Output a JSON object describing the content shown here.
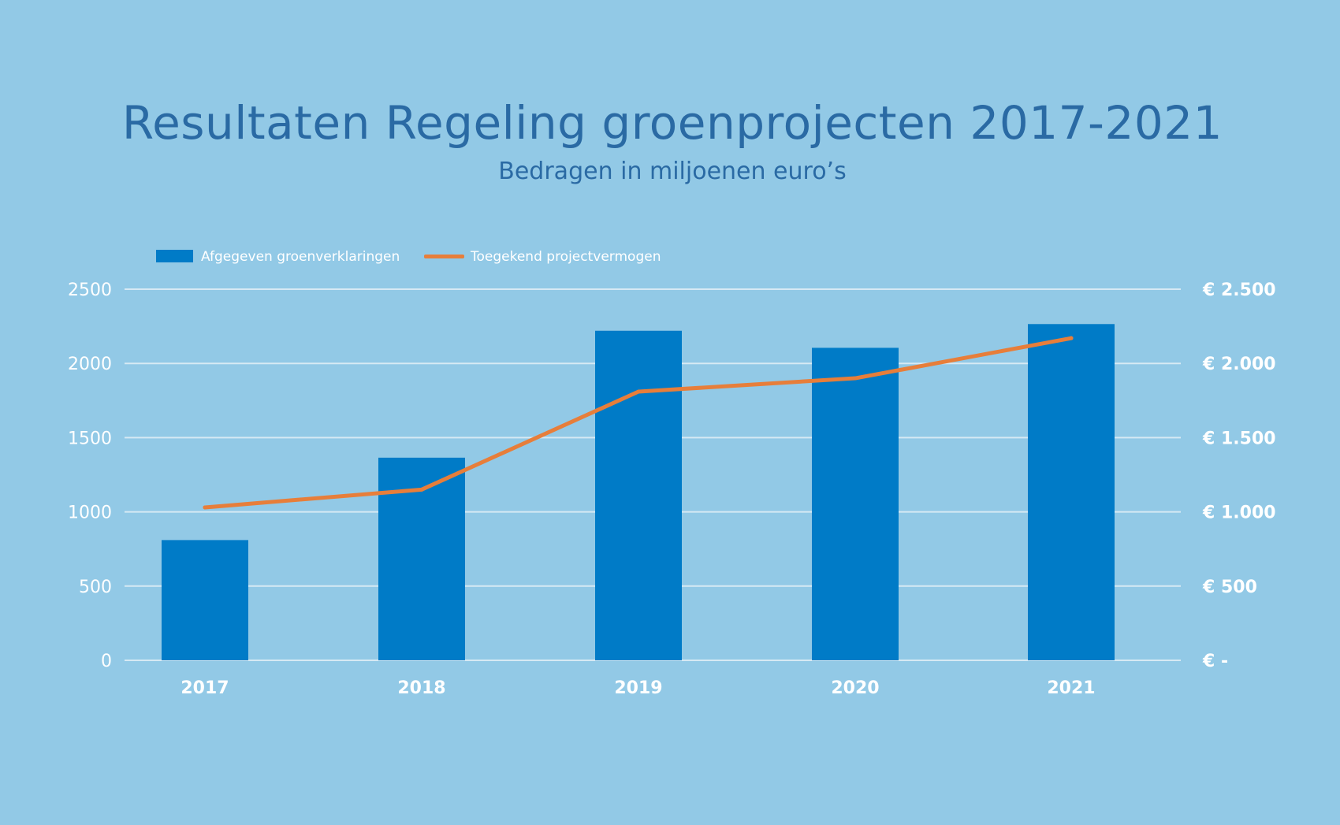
{
  "chart_data": {
    "type": "bar",
    "title": "Resultaten Regeling groenprojecten 2017-2021",
    "subtitle": "Bedragen in miljoenen euro’s",
    "categories": [
      "2017",
      "2018",
      "2019",
      "2020",
      "2021"
    ],
    "series": [
      {
        "name": "Afgegeven groenverklaringen",
        "type": "bar",
        "axis": "left",
        "values": [
          810,
          1365,
          2220,
          2105,
          2265
        ]
      },
      {
        "name": "Toegekend projectvermogen",
        "type": "line",
        "axis": "right",
        "values": [
          1030,
          1150,
          1810,
          1900,
          2170
        ]
      }
    ],
    "y_left": {
      "range": [
        0,
        2500
      ],
      "ticks": [
        0,
        500,
        1000,
        1500,
        2000,
        2500
      ],
      "tick_labels": [
        "0",
        "500",
        "1000",
        "1500",
        "2000",
        "2500"
      ]
    },
    "y_right": {
      "range": [
        0,
        2500
      ],
      "ticks": [
        0,
        500,
        1000,
        1500,
        2000,
        2500
      ],
      "tick_labels": [
        "€ -",
        "€ 500",
        "€ 1.000",
        "€ 1.500",
        "€ 2.000",
        "€ 2.500"
      ]
    },
    "grid": true,
    "legend_position": "top-left",
    "colors": {
      "background": "#92c9e6",
      "bar": "#007bc7",
      "line": "#e77e3a",
      "gridline": "#d6e9f4",
      "title": "#2a6aa4",
      "tick_text": "#ffffff"
    }
  }
}
